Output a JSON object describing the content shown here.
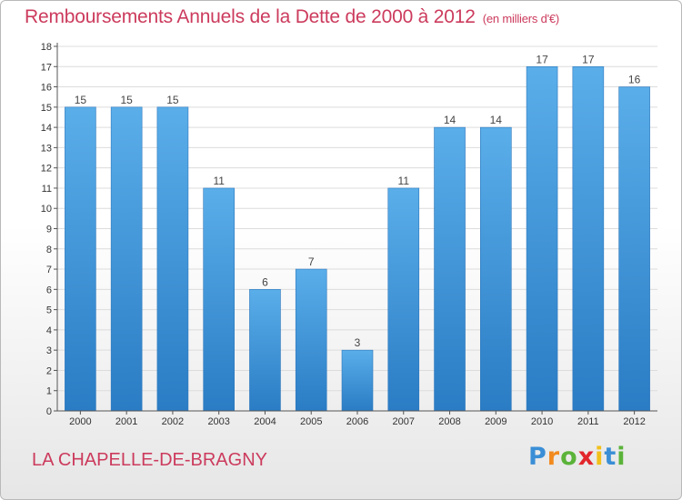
{
  "title": "Remboursements Annuels de la Dette de 2000 à 2012",
  "unit_note": "(en milliers d'€)",
  "town": "LA CHAPELLE-DE-BRAGNY",
  "brand": {
    "letters": [
      "P",
      "r",
      "o",
      "x",
      "i",
      "t",
      "i"
    ],
    "colors": [
      "#3a8ed6",
      "#f28a1e",
      "#5bb33a",
      "#e2262c",
      "#f2c01a",
      "#3a8ed6",
      "#5bb33a"
    ]
  },
  "chart_data": {
    "type": "bar",
    "categories": [
      "2000",
      "2001",
      "2002",
      "2003",
      "2004",
      "2005",
      "2006",
      "2007",
      "2008",
      "2009",
      "2010",
      "2011",
      "2012"
    ],
    "values": [
      15,
      15,
      15,
      11,
      6,
      7,
      3,
      11,
      14,
      14,
      17,
      17,
      16
    ],
    "data_labels": [
      "15",
      "15",
      "15",
      "11",
      "6",
      "7",
      "3",
      "11",
      "14",
      "14",
      "17",
      "17",
      "16"
    ],
    "yticks": [
      "0",
      "1",
      "2",
      "3",
      "4",
      "5",
      "6",
      "7",
      "8",
      "9",
      "10",
      "11",
      "12",
      "13",
      "14",
      "15",
      "16",
      "17",
      "18"
    ],
    "ylim": [
      0,
      18
    ],
    "grid": true,
    "bar_color": "#3b93dc"
  }
}
